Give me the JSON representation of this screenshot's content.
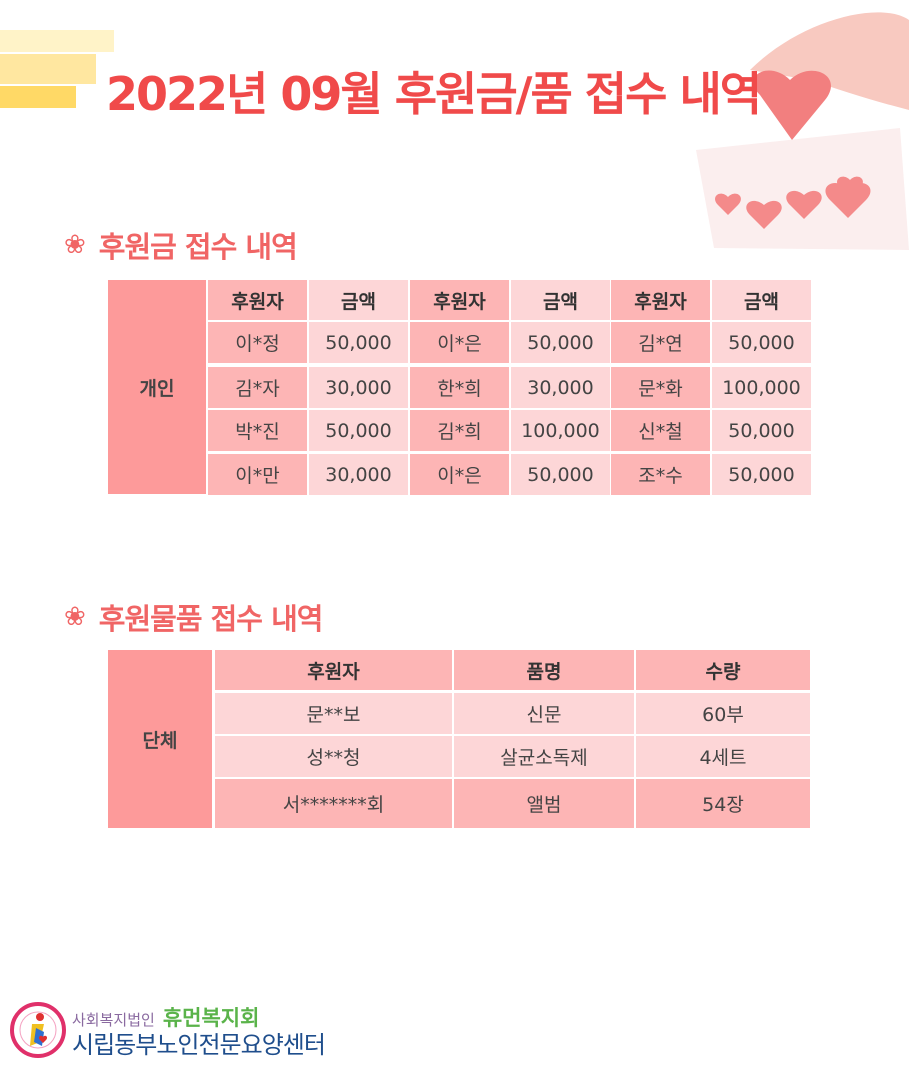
{
  "title": "2022년 09월 후원금/품 접수 내역",
  "cash_section": {
    "heading": "후원금 접수 내역",
    "group_label": "개인",
    "headers": [
      "후원자",
      "금액",
      "후원자",
      "금액",
      "후원자",
      "금액"
    ],
    "rows": [
      [
        "이*정",
        "50,000",
        "이*은",
        "50,000",
        "김*연",
        "50,000"
      ],
      [
        "김*자",
        "30,000",
        "한*희",
        "30,000",
        "문*화",
        "100,000"
      ],
      [
        "박*진",
        "50,000",
        "김*희",
        "100,000",
        "신*철",
        "50,000"
      ],
      [
        "이*만",
        "30,000",
        "이*은",
        "50,000",
        "조*수",
        "50,000"
      ]
    ]
  },
  "goods_section": {
    "heading": "후원물품 접수 내역",
    "group_label": "단체",
    "headers": [
      "후원자",
      "품명",
      "수량"
    ],
    "rows": [
      [
        "문**보",
        "신문",
        "60부"
      ],
      [
        "성**청",
        "살균소독제",
        "4세트"
      ],
      [
        "서*******회",
        "앨범",
        "54장"
      ]
    ]
  },
  "footer": {
    "org_line1": "사회복지법인",
    "org_name": "휴먼복지회",
    "center_name": "시립동부노인전문요양센터"
  },
  "colors": {
    "title": "#f04a4a",
    "label": "#fd9a9a",
    "dark_cell": "#fdb5b5",
    "light_cell": "#fdd6d7"
  }
}
